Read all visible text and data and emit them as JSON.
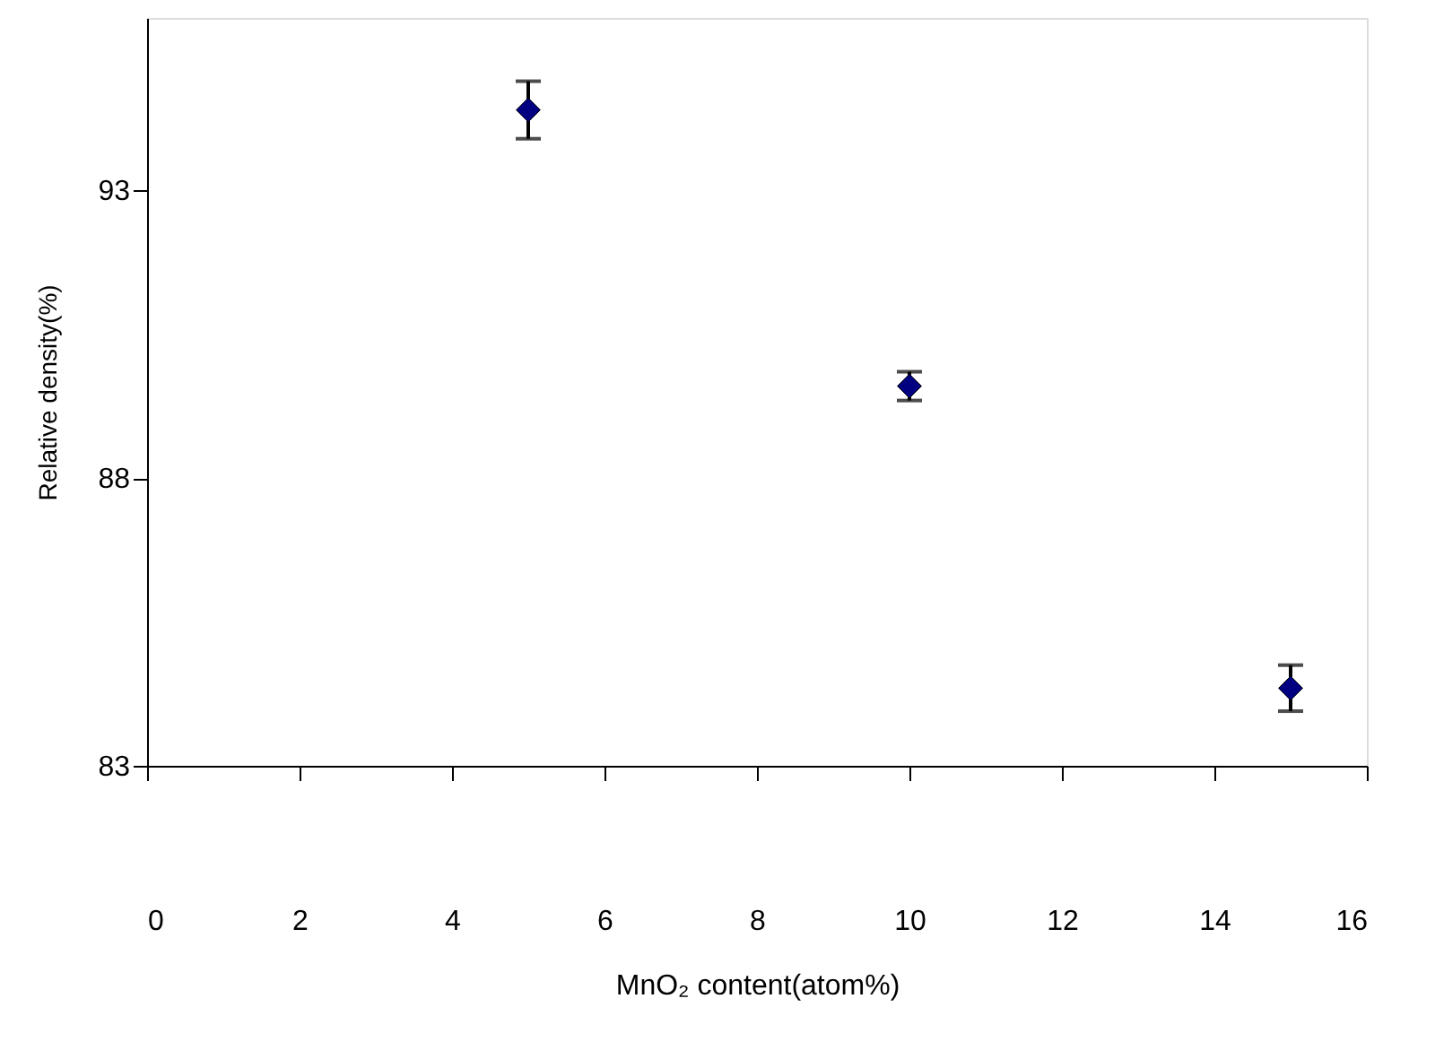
{
  "chart_data": {
    "type": "scatter",
    "xlabel": "MnO₂ content(atom%)",
    "ylabel": "Relative density(%)",
    "x": [
      5,
      10,
      15
    ],
    "series": [
      {
        "color": "#000080",
        "values": [
          94.4,
          89.6,
          84.35
        ],
        "errors": [
          0.5,
          0.25,
          0.4
        ]
      }
    ],
    "xlim": [
      0,
      16
    ],
    "xticks": [
      0,
      2,
      4,
      6,
      8,
      10,
      12,
      14,
      16
    ],
    "ylim": [
      83,
      96
    ],
    "yticks": [
      83,
      88,
      93
    ],
    "grid": false,
    "marker": "diamond"
  }
}
